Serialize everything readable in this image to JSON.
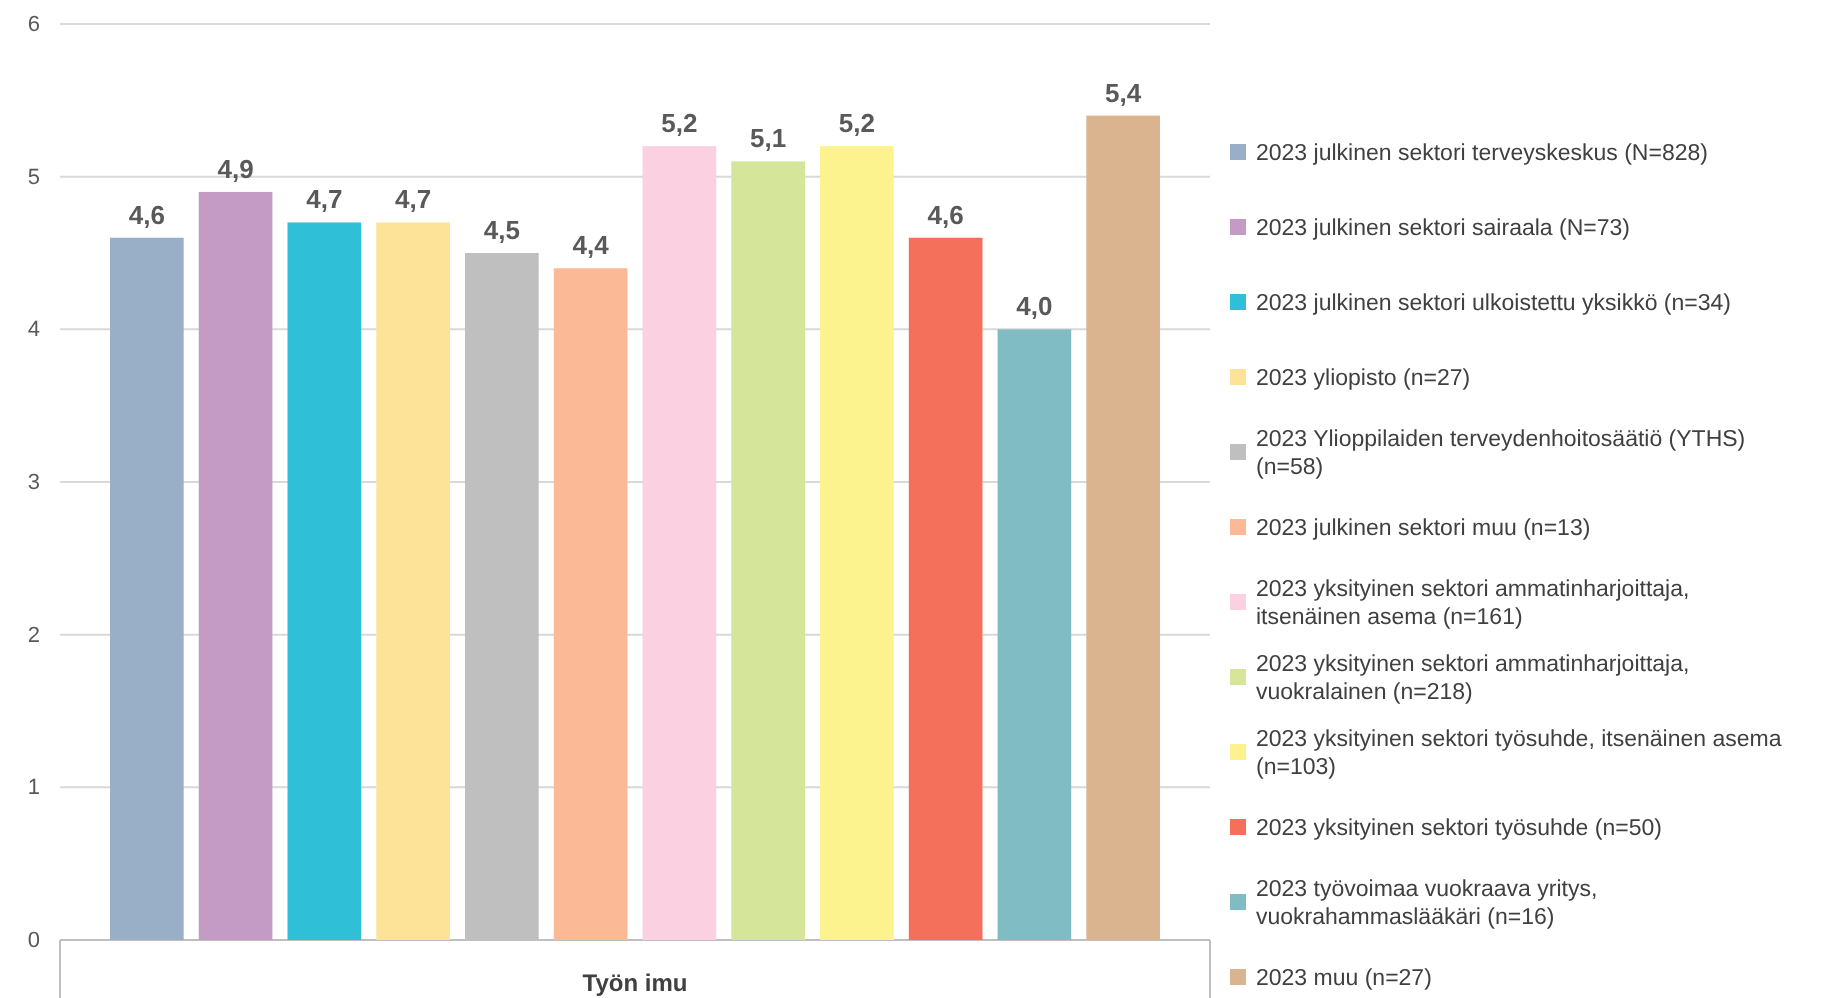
{
  "chart_data": {
    "type": "bar",
    "categories": [
      "Työn imu"
    ],
    "ylim": [
      0,
      6
    ],
    "yticks": [
      0,
      1,
      2,
      3,
      4,
      5,
      6
    ],
    "grid": "y",
    "legend": "right",
    "series": [
      {
        "name": "2023 julkinen sektori terveyskeskus (N=828)",
        "color": "#98afc7",
        "values": [
          4.6
        ],
        "value_labels": [
          "4,6"
        ]
      },
      {
        "name": "2023 julkinen sektori sairaala (N=73)",
        "color": "#c39bc4",
        "values": [
          4.9
        ],
        "value_labels": [
          "4,9"
        ]
      },
      {
        "name": "2023 julkinen sektori ulkoistettu yksikkö (n=34)",
        "color": "#2fbfd6",
        "values": [
          4.7
        ],
        "value_labels": [
          "4,7"
        ]
      },
      {
        "name": "2023 yliopisto (n=27)",
        "color": "#fde398",
        "values": [
          4.7
        ],
        "value_labels": [
          "4,7"
        ]
      },
      {
        "name": "2023 Ylioppilaiden terveydenhoitosäätiö (YTHS) (n=58)",
        "color": "#bfbfbf",
        "values": [
          4.5
        ],
        "value_labels": [
          "4,5"
        ]
      },
      {
        "name": "2023 julkinen sektori muu (n=13)",
        "color": "#fbb995",
        "values": [
          4.4
        ],
        "value_labels": [
          "4,4"
        ]
      },
      {
        "name": "2023 yksityinen sektori ammatinharjoittaja, itsenäinen asema (n=161)",
        "color": "#fbd0e0",
        "values": [
          5.2
        ],
        "value_labels": [
          "5,2"
        ]
      },
      {
        "name": "2023 yksityinen sektori ammatinharjoittaja, vuokralainen (n=218)",
        "color": "#d5e59a",
        "values": [
          5.1
        ],
        "value_labels": [
          "5,1"
        ]
      },
      {
        "name": "2023 yksityinen sektori työsuhde, itsenäinen asema (n=103)",
        "color": "#fdf38e",
        "values": [
          5.2
        ],
        "value_labels": [
          "5,2"
        ]
      },
      {
        "name": "2023 yksityinen sektori työsuhde (n=50)",
        "color": "#f4705a",
        "values": [
          4.6
        ],
        "value_labels": [
          "4,6"
        ]
      },
      {
        "name": "2023 työvoimaa vuokraava yritys, vuokrahammaslääkäri (n=16)",
        "color": "#80bcc4",
        "values": [
          4.0
        ],
        "value_labels": [
          "4,0"
        ]
      },
      {
        "name": "2023 muu (n=27)",
        "color": "#d9b48f",
        "values": [
          5.4
        ],
        "value_labels": [
          "5,4"
        ]
      }
    ]
  }
}
